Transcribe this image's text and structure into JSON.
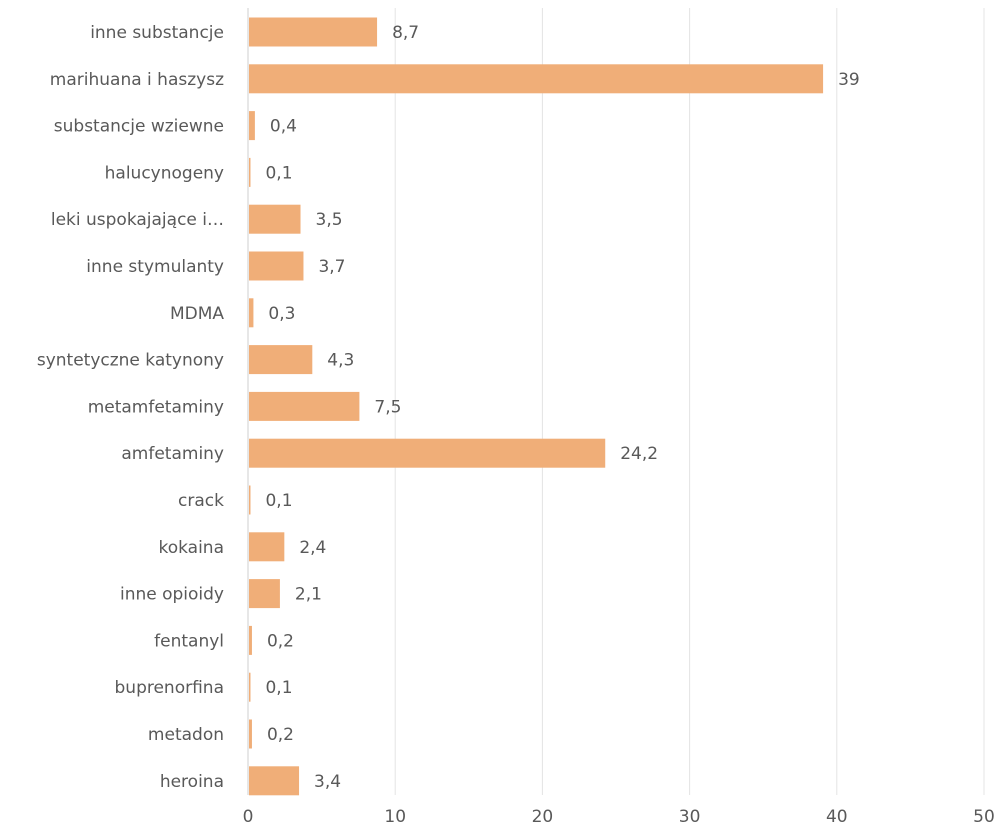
{
  "chart_data": {
    "type": "bar",
    "orientation": "horizontal",
    "title": "",
    "xlabel": "",
    "ylabel": "",
    "categories": [
      "inne substancje",
      "marihuana i haszysz",
      "substancje wziewne",
      "halucynogeny",
      "leki uspokajające i…",
      "inne stymulanty",
      "MDMA",
      "syntetyczne katynony",
      "metamfetaminy",
      "amfetaminy",
      "crack",
      "kokaina",
      "inne opioidy",
      "fentanyl",
      "buprenorfina",
      "metadon",
      "heroina"
    ],
    "values": [
      8.7,
      39,
      0.4,
      0.1,
      3.5,
      3.7,
      0.3,
      4.3,
      7.5,
      24.2,
      0.1,
      2.4,
      2.1,
      0.2,
      0.1,
      0.2,
      3.4
    ],
    "value_labels": [
      "8,7",
      "39",
      "0,4",
      "0,1",
      "3,5",
      "3,7",
      "0,3",
      "4,3",
      "7,5",
      "24,2",
      "0,1",
      "2,4",
      "2,1",
      "0,2",
      "0,1",
      "0,2",
      "3,4"
    ],
    "xlim": [
      0,
      50
    ],
    "xticks": [
      0,
      10,
      20,
      30,
      40,
      50
    ],
    "xtick_labels": [
      "0",
      "10",
      "20",
      "30",
      "40",
      "50"
    ],
    "grid": true,
    "legend": "none",
    "bar_color": "#F0AE78",
    "gridline_color": "#e4e4e4",
    "text_color": "#595959"
  }
}
